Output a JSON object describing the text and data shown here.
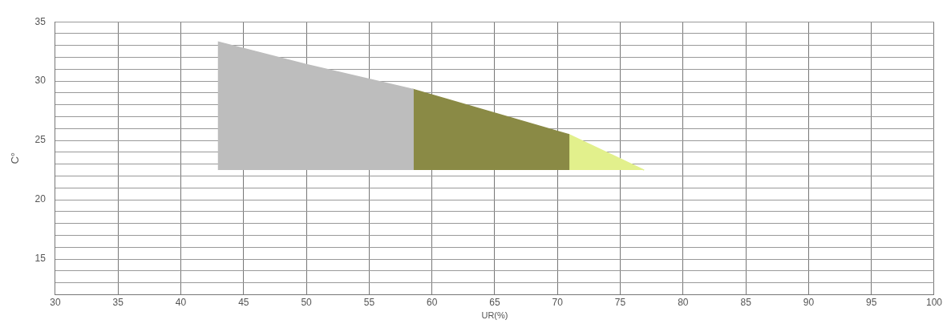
{
  "chart_data": {
    "type": "area",
    "xlabel": "UR(%)",
    "ylabel": "C°",
    "xlim": [
      30,
      100
    ],
    "xticks": [
      30,
      35,
      40,
      45,
      50,
      55,
      60,
      65,
      70,
      75,
      80,
      85,
      90,
      95,
      100
    ],
    "ylim": [
      12,
      35
    ],
    "yticks": [
      {
        "value": 13,
        "label": null
      },
      {
        "value": 14,
        "label": null
      },
      15,
      {
        "value": 16,
        "label": null
      },
      {
        "value": 17,
        "label": null
      },
      {
        "value": 18,
        "label": null
      },
      {
        "value": 19,
        "label": null
      },
      20,
      {
        "value": 21,
        "label": null
      },
      {
        "value": 22,
        "label": null
      },
      {
        "value": 23,
        "label": null
      },
      {
        "value": 24,
        "label": null
      },
      25,
      {
        "value": 26,
        "label": null
      },
      {
        "value": 27,
        "label": null
      },
      {
        "value": 28,
        "label": null
      },
      {
        "value": 29,
        "label": null
      },
      30,
      {
        "value": 31,
        "label": null
      },
      {
        "value": 32,
        "label": null
      },
      {
        "value": 33,
        "label": null
      },
      {
        "value": 34,
        "label": null
      },
      35
    ],
    "grid": true,
    "legend": false,
    "series": [
      {
        "color": "#bdbdbd",
        "x": [
          43,
          43,
          50,
          58.5,
          58.5
        ],
        "values": [
          22.5,
          33.3,
          31.4,
          29.3,
          22.5
        ]
      },
      {
        "color": "#8a8a45",
        "x": [
          58.5,
          58.5,
          70.9,
          70.9
        ],
        "values": [
          22.5,
          29.3,
          25.5,
          22.5
        ]
      },
      {
        "color": "#e2f08c",
        "x": [
          70.9,
          70.9,
          76.9
        ],
        "values": [
          22.5,
          25.5,
          22.5
        ]
      }
    ]
  }
}
